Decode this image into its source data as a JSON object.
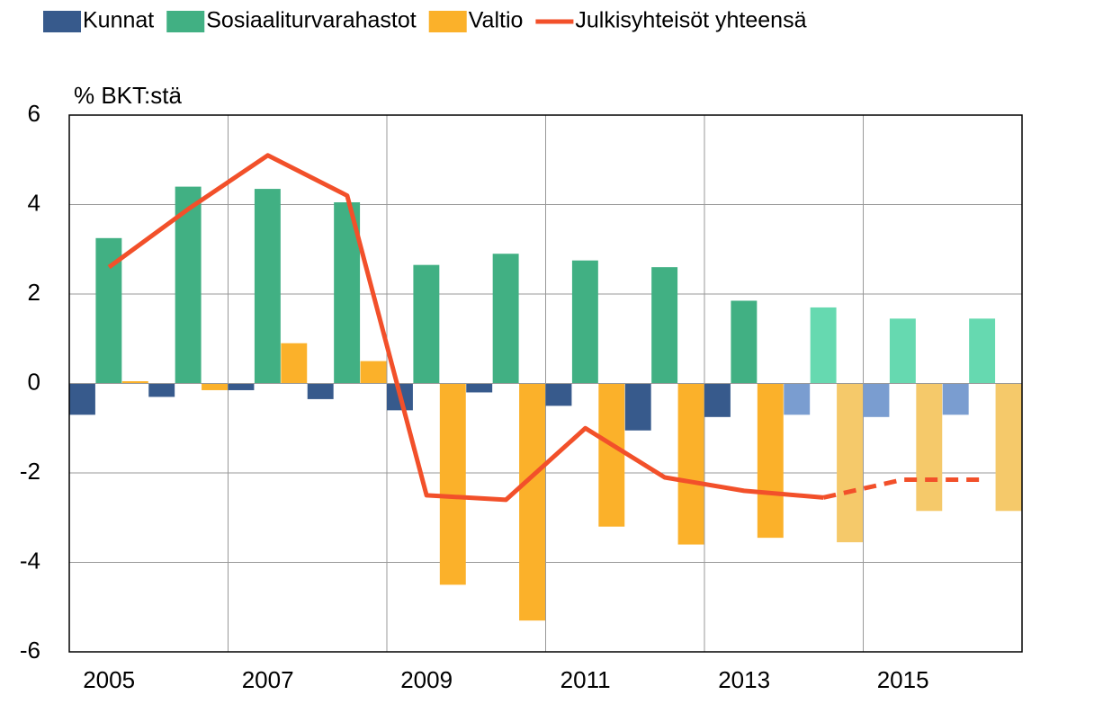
{
  "chart_data": {
    "type": "bar",
    "y_axis_label": "% BKT:stä",
    "categories": [
      "2005",
      null,
      "2007",
      null,
      "2009",
      null,
      "2011",
      null,
      "2013",
      null,
      "2015",
      null
    ],
    "series": [
      {
        "name": "Kunnat",
        "type": "bar",
        "color": "#375a8c",
        "colors": [
          "#375a8c",
          "#375a8c",
          "#375a8c",
          "#375a8c",
          "#375a8c",
          "#375a8c",
          "#375a8c",
          "#375a8c",
          "#375a8c",
          "#7a9dd0",
          "#7a9dd0",
          "#7a9dd0"
        ],
        "values": [
          -0.7,
          -0.3,
          -0.15,
          -0.35,
          -0.6,
          -0.2,
          -0.5,
          -1.05,
          -0.75,
          -0.7,
          -0.75,
          -0.7
        ]
      },
      {
        "name": "Sosiaaliturvarahastot",
        "type": "bar",
        "color": "#41b083",
        "colors": [
          "#41b083",
          "#41b083",
          "#41b083",
          "#41b083",
          "#41b083",
          "#41b083",
          "#41b083",
          "#41b083",
          "#41b083",
          "#66d9b0",
          "#66d9b0",
          "#66d9b0"
        ],
        "values": [
          3.25,
          4.4,
          4.35,
          4.05,
          2.65,
          2.9,
          2.75,
          2.6,
          1.85,
          1.7,
          1.45,
          1.45
        ]
      },
      {
        "name": "Valtio",
        "type": "bar",
        "color": "#fbb12a",
        "colors": [
          "#fbb12a",
          "#fbb12a",
          "#fbb12a",
          "#fbb12a",
          "#fbb12a",
          "#fbb12a",
          "#fbb12a",
          "#fbb12a",
          "#fbb12a",
          "#f5c96a",
          "#f5c96a",
          "#f5c96a"
        ],
        "values": [
          0.05,
          -0.15,
          0.9,
          0.5,
          -4.5,
          -5.3,
          -3.2,
          -3.6,
          -3.45,
          -3.55,
          -2.85,
          -2.85
        ]
      },
      {
        "name": "Julkisyhteisöt yhteensä",
        "type": "line",
        "color": "#f2502a",
        "dash_from_index": 9,
        "values": [
          2.6,
          3.9,
          5.1,
          4.2,
          -2.5,
          -2.6,
          -1.0,
          -2.1,
          -2.4,
          -2.55,
          -2.15,
          -2.15
        ]
      }
    ],
    "ylim": [
      -6,
      6
    ],
    "yticks": [
      -6,
      -4,
      -2,
      0,
      2,
      4,
      6
    ],
    "grid": true
  }
}
